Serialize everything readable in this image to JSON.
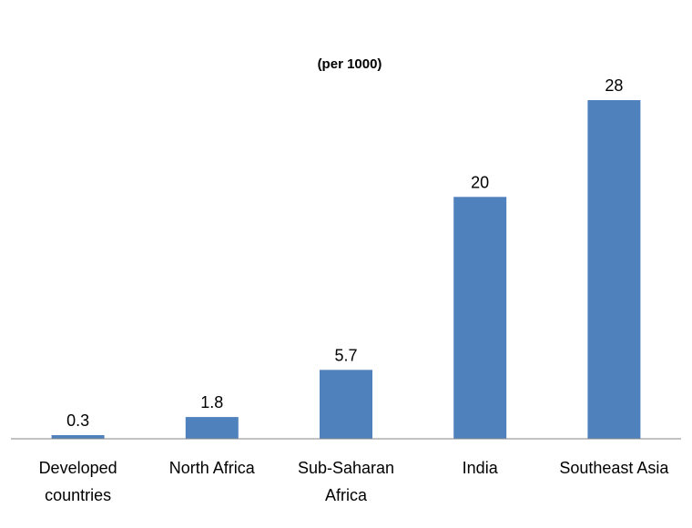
{
  "chart_data": {
    "type": "bar",
    "title": "(per 1000)",
    "categories": [
      [
        "Developed",
        "countries"
      ],
      [
        "North Africa"
      ],
      [
        "Sub-Saharan",
        "Africa"
      ],
      [
        "India"
      ],
      [
        "Southeast Asia"
      ]
    ],
    "values": [
      0.3,
      1.8,
      5.7,
      20,
      28
    ],
    "value_labels": [
      "0.3",
      "1.8",
      "5.7",
      "20",
      "28"
    ],
    "xlabel": "",
    "ylabel": "",
    "ylim": [
      0,
      28
    ],
    "grid": false,
    "colors": {
      "bar": "#4f81bd",
      "axis": "#868686"
    }
  }
}
